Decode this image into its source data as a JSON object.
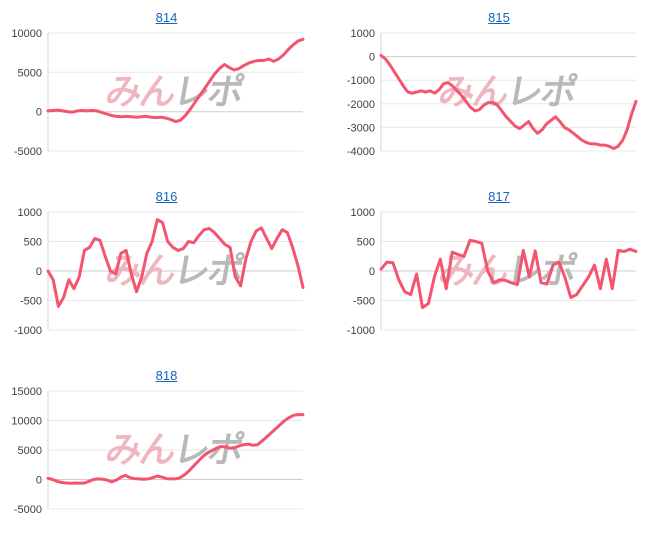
{
  "page": {
    "background": "#ffffff",
    "description": "grid of five daily slump line charts"
  },
  "colors": {
    "line": "#f4546e",
    "grid": "#e8e8e8",
    "zero_grid": "#cdcdcd",
    "axis": "#d6d6d6",
    "tick_text": "#404040",
    "link": "#1565c0",
    "wm_pink": "#f0b6bf",
    "wm_gray": "#b9b9b9"
  },
  "watermark": {
    "part1": "みん",
    "part2": "レポ"
  },
  "chart_data": [
    {
      "type": "line",
      "title": "814",
      "title_is_link": true,
      "ylim": [
        -5000,
        10000
      ],
      "yticks": [
        10000,
        5000,
        0,
        -5000
      ],
      "x_axis_labels": "none",
      "grid": true,
      "legend": "none",
      "values": [
        100,
        150,
        200,
        100,
        0,
        -50,
        100,
        150,
        100,
        150,
        100,
        -100,
        -300,
        -500,
        -600,
        -650,
        -600,
        -650,
        -700,
        -650,
        -600,
        -700,
        -750,
        -700,
        -800,
        -1000,
        -1250,
        -1100,
        -500,
        300,
        1200,
        2100,
        3000,
        3900,
        4800,
        5500,
        6000,
        5600,
        5300,
        5500,
        5900,
        6200,
        6400,
        6500,
        6500,
        6700,
        6400,
        6700,
        7200,
        7900,
        8500,
        9000,
        9200
      ]
    },
    {
      "type": "line",
      "title": "815",
      "title_is_link": true,
      "ylim": [
        -4000,
        1000
      ],
      "yticks": [
        1000,
        0,
        -1000,
        -2000,
        -3000,
        -4000
      ],
      "x_axis_labels": "none",
      "grid": true,
      "legend": "none",
      "values": [
        50,
        -100,
        -350,
        -650,
        -950,
        -1250,
        -1500,
        -1550,
        -1500,
        -1450,
        -1500,
        -1450,
        -1550,
        -1400,
        -1150,
        -1100,
        -1250,
        -1450,
        -1650,
        -1900,
        -2150,
        -2300,
        -2250,
        -2050,
        -1950,
        -1950,
        -2050,
        -2300,
        -2550,
        -2750,
        -2950,
        -3050,
        -2900,
        -2750,
        -3050,
        -3250,
        -3100,
        -2850,
        -2700,
        -2550,
        -2750,
        -3000,
        -3100,
        -3250,
        -3400,
        -3550,
        -3650,
        -3700,
        -3700,
        -3750,
        -3750,
        -3800,
        -3900,
        -3800,
        -3550,
        -3100,
        -2450,
        -1900
      ]
    },
    {
      "type": "line",
      "title": "816",
      "title_is_link": true,
      "ylim": [
        -1000,
        1000
      ],
      "yticks": [
        1000,
        500,
        0,
        -500,
        -1000
      ],
      "x_axis_labels": "none",
      "grid": true,
      "legend": "none",
      "values": [
        0,
        -150,
        -600,
        -450,
        -150,
        -300,
        -100,
        350,
        400,
        550,
        520,
        250,
        0,
        -50,
        300,
        350,
        -50,
        -350,
        -100,
        300,
        500,
        870,
        820,
        500,
        400,
        350,
        380,
        500,
        480,
        600,
        700,
        720,
        650,
        550,
        450,
        400,
        -100,
        -250,
        200,
        500,
        680,
        730,
        550,
        380,
        550,
        700,
        650,
        400,
        100,
        -280
      ]
    },
    {
      "type": "line",
      "title": "817",
      "title_is_link": true,
      "ylim": [
        -1000,
        1000
      ],
      "yticks": [
        1000,
        500,
        0,
        -500,
        -1000
      ],
      "x_axis_labels": "none",
      "grid": true,
      "legend": "none",
      "values": [
        30,
        150,
        140,
        -150,
        -350,
        -400,
        -50,
        -620,
        -550,
        -100,
        200,
        -300,
        320,
        280,
        250,
        520,
        500,
        470,
        0,
        -200,
        -150,
        -160,
        -200,
        -230,
        350,
        -100,
        340,
        -200,
        -220,
        100,
        150,
        -100,
        -450,
        -400,
        -250,
        -100,
        100,
        -300,
        200,
        -300,
        350,
        330,
        370,
        330
      ]
    },
    {
      "type": "line",
      "title": "818",
      "title_is_link": true,
      "ylim": [
        -5000,
        15000
      ],
      "yticks": [
        15000,
        10000,
        5000,
        0,
        -5000
      ],
      "x_axis_labels": "none",
      "grid": true,
      "legend": "none",
      "values": [
        200,
        0,
        -300,
        -500,
        -600,
        -650,
        -600,
        -650,
        -600,
        -300,
        0,
        100,
        50,
        -100,
        -400,
        -100,
        400,
        700,
        300,
        150,
        100,
        50,
        100,
        300,
        600,
        400,
        150,
        100,
        100,
        300,
        800,
        1500,
        2300,
        3100,
        3900,
        4500,
        4900,
        5300,
        5600,
        5500,
        5300,
        5400,
        5700,
        5900,
        6000,
        5800,
        5900,
        6500,
        7200,
        7900,
        8600,
        9300,
        10000,
        10500,
        10900,
        11000,
        11000
      ]
    }
  ]
}
